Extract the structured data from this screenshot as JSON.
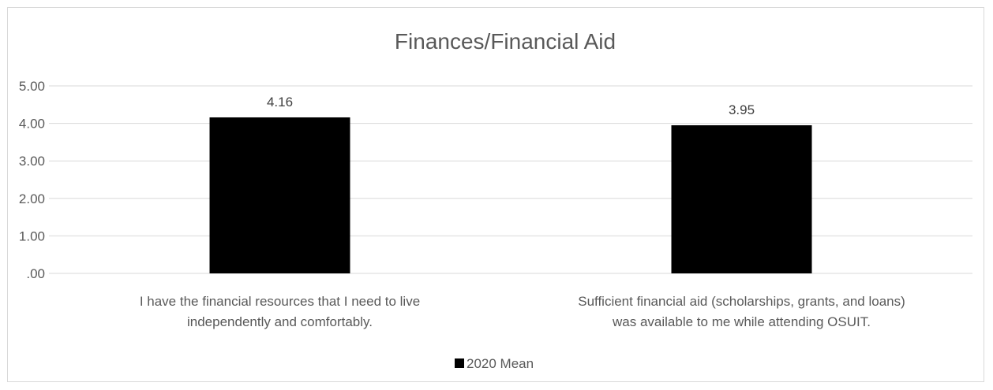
{
  "chart_data": {
    "type": "bar",
    "title": "Finances/Financial Aid",
    "categories": [
      [
        "I have the financial resources that I need to live",
        "independently and comfortably."
      ],
      [
        "Sufficient financial aid (scholarships, grants, and loans)",
        "was available to me while attending OSUIT."
      ]
    ],
    "series": [
      {
        "name": "2020 Mean",
        "values": [
          4.16,
          3.95
        ],
        "color": "#000000"
      }
    ],
    "data_labels": [
      "4.16",
      "3.95"
    ],
    "ylim": [
      0,
      5
    ],
    "yticks": [
      ".00",
      "1.00",
      "2.00",
      "3.00",
      "4.00",
      "5.00"
    ],
    "grid": true,
    "legend_position": "bottom"
  }
}
